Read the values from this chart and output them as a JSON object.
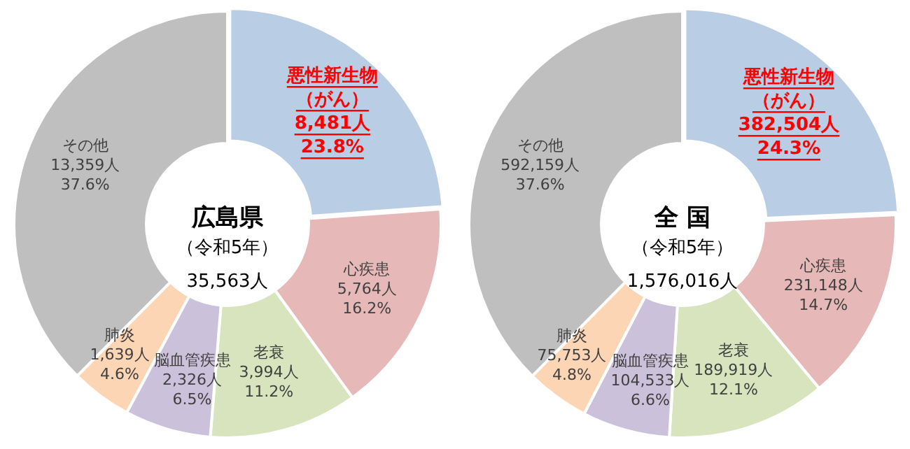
{
  "chart_data": [
    {
      "type": "donut",
      "categories": [
        "悪性新生物（がん）",
        "心疾患",
        "老衰",
        "脳血管疾患",
        "肺炎",
        "その他"
      ],
      "values": [
        8481,
        5764,
        3994,
        2326,
        1639,
        13359
      ],
      "value_labels": [
        "8,481人\n23.8%",
        "5,764人\n16.2%",
        "3,994人\n11.2%",
        "2,326人\n6.5%",
        "1,639人\n4.6%",
        "13,359人\n37.6%"
      ],
      "colors": [
        "#b9cde5",
        "#e6b9b8",
        "#d7e4bd",
        "#ccc1da",
        "#fcd5b5",
        "#bfbfbf"
      ],
      "annotations": [
        "広島県",
        "（令和5年）",
        "35,563人"
      ],
      "legend": false
    },
    {
      "type": "donut",
      "categories": [
        "悪性新生物（がん）",
        "心疾患",
        "老衰",
        "脳血管疾患",
        "肺炎",
        "その他"
      ],
      "values": [
        382504,
        231148,
        189919,
        104533,
        75753,
        592159
      ],
      "value_labels": [
        "382,504人\n24.3%",
        "231,148人\n14.7%",
        "189,919人\n12.1%",
        "104,533人\n6.6%",
        "75,753人\n4.8%",
        "592,159人\n37.6%"
      ],
      "colors": [
        "#b9cde5",
        "#e6b9b8",
        "#d7e4bd",
        "#ccc1da",
        "#fcd5b5",
        "#bfbfbf"
      ],
      "annotations": [
        "全 国",
        "（令和5年）",
        "1,576,016人"
      ],
      "legend": false
    }
  ]
}
